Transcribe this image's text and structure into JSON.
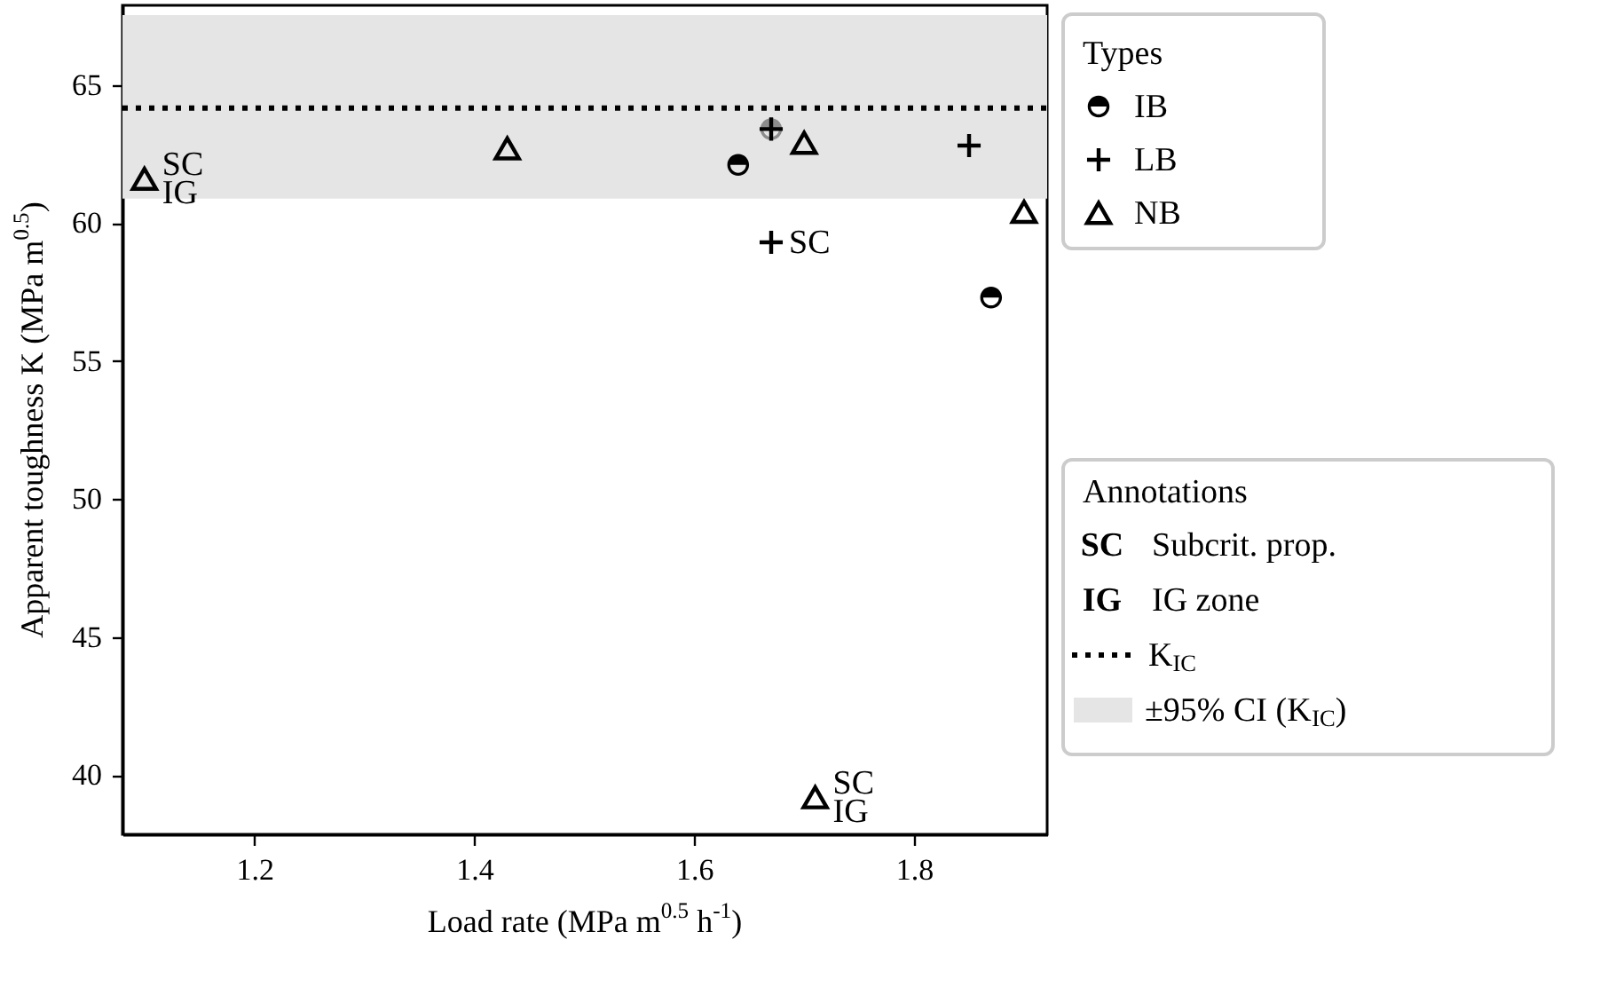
{
  "chart_data": {
    "type": "scatter",
    "xlabel": "Load rate (MPa m$^{0.5}$ h$^{-1}$)",
    "ylabel": "Apparent toughness K (MPa m$^{0.5}$)",
    "xlim": [
      1.08,
      1.921
    ],
    "xticks": [
      1.2,
      1.4,
      1.6,
      1.8
    ],
    "ylim": [
      37.86,
      67.88
    ],
    "yticks": [
      40,
      45,
      50,
      55,
      60,
      65
    ],
    "grid": false,
    "legend": "right",
    "legend_title": "Types",
    "series": [
      {
        "name": "IB",
        "marker": "circle",
        "color": "#000000",
        "colors": [
          "#000000",
          "#8c8c8c",
          "#000000"
        ],
        "x": [
          1.64,
          1.67,
          1.87
        ],
        "values": [
          62.1,
          63.4,
          57.3
        ]
      },
      {
        "name": "LB",
        "marker": "cross",
        "color": "#000000",
        "x": [
          1.67,
          1.85,
          1.67
        ],
        "values": [
          63.4,
          62.8,
          59.3
        ]
      },
      {
        "name": "NB",
        "marker": "triangle",
        "color": "#000000",
        "x": [
          1.1,
          1.43,
          1.7,
          1.71,
          1.9
        ],
        "values": [
          61.6,
          62.7,
          62.9,
          39.2,
          60.4
        ]
      }
    ],
    "ref_lines": [
      {
        "axis": "y",
        "value": 64.16,
        "label": "K$_{IC}$",
        "line_style": "dotted",
        "color": "#000000"
      }
    ],
    "bands": [
      {
        "axis": "y",
        "from": 60.88,
        "to": 67.53,
        "label": "±95% CI (K$_{IC}$)",
        "color": "#e5e5e5"
      }
    ],
    "annotations": [
      {
        "text": "SC",
        "x": 1.1,
        "y": 61.6
      },
      {
        "text": "IG",
        "x": 1.1,
        "y": 61.6
      },
      {
        "text": "SC",
        "x": 1.67,
        "y": 59.3
      },
      {
        "text": "SC",
        "x": 1.71,
        "y": 39.2
      },
      {
        "text": "IG",
        "x": 1.71,
        "y": 39.2
      },
      "Annotations",
      "SC",
      "Subcrit. prop.",
      "IG",
      "IG zone"
    ]
  }
}
